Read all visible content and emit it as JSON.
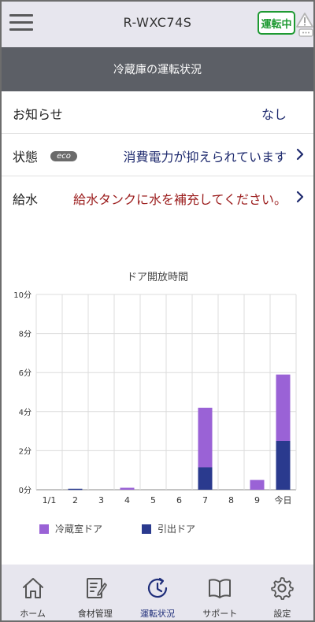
{
  "header": {
    "model": "R-WXC74S",
    "status_badge": "運転中",
    "subtitle": "冷蔵庫の運転状況"
  },
  "rows": {
    "notice": {
      "label": "お知らせ",
      "value": "なし"
    },
    "state": {
      "label": "状態",
      "eco": "eco",
      "value": "消費電力が抑えられています"
    },
    "water": {
      "label": "給水",
      "value": "給水タンクに水を補充してください。"
    }
  },
  "colors": {
    "fridge_door": "#9a62d6",
    "drawer_door": "#2a3a8e",
    "notice_blue": "#1e2a6e",
    "warning_red": "#9b1c1c",
    "running_green": "#1e9a32"
  },
  "chart_data": {
    "type": "bar",
    "stacked": true,
    "title": "ドア開放時間",
    "categories": [
      "1/1",
      "2",
      "3",
      "4",
      "5",
      "6",
      "7",
      "8",
      "9",
      "今日"
    ],
    "y_tick_labels": [
      "0分",
      "2分",
      "4分",
      "6分",
      "8分",
      "10分"
    ],
    "ylim": [
      0,
      10
    ],
    "y_unit": "分",
    "grid": true,
    "legend_position": "bottom",
    "series": [
      {
        "name": "引出ドア",
        "values": [
          0,
          0.05,
          0,
          0,
          0,
          0,
          1.15,
          0,
          0,
          2.5
        ]
      },
      {
        "name": "冷蔵室ドア",
        "values": [
          0,
          0,
          0,
          0.1,
          0,
          0,
          3.05,
          0,
          0.5,
          3.4
        ]
      }
    ]
  },
  "nav": [
    {
      "label": "ホーム",
      "icon": "home-icon"
    },
    {
      "label": "食材管理",
      "icon": "food-list-icon"
    },
    {
      "label": "運転状況",
      "icon": "status-clock-icon"
    },
    {
      "label": "サポート",
      "icon": "book-icon"
    },
    {
      "label": "設定",
      "icon": "gear-icon"
    }
  ]
}
